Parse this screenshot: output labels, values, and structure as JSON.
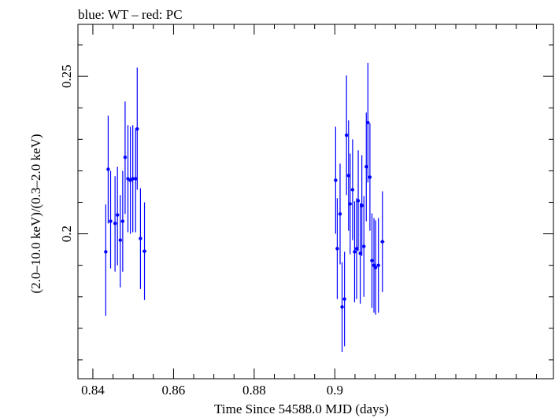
{
  "chart_data": {
    "type": "scatter",
    "title": "blue: WT – red: PC",
    "xlabel": "Time Since 54588.0 MJD (days)",
    "ylabel": "(2.0–10.0 keV)/(0.3–2.0 keV)",
    "xlim": [
      0.8363,
      0.9542
    ],
    "ylim": [
      0.154,
      0.2665
    ],
    "xticks": [
      0.84,
      0.86,
      0.88,
      0.9
    ],
    "xtick_labels": [
      "0.84",
      "0.86",
      "0.88",
      "0.9"
    ],
    "yticks": [
      0.2,
      0.25
    ],
    "ytick_labels": [
      "0.2",
      "0.25"
    ],
    "grid": false,
    "series": [
      {
        "color": "#0000ff",
        "points": [
          {
            "x": 0.8432,
            "y": 0.1943,
            "ylo": 0.174,
            "yhi": 0.2093
          },
          {
            "x": 0.8438,
            "y": 0.2205,
            "ylo": 0.2033,
            "yhi": 0.2375
          },
          {
            "x": 0.8444,
            "y": 0.204,
            "ylo": 0.189,
            "yhi": 0.22
          },
          {
            "x": 0.8455,
            "y": 0.2033,
            "ylo": 0.188,
            "yhi": 0.2183
          },
          {
            "x": 0.8461,
            "y": 0.206,
            "ylo": 0.19,
            "yhi": 0.2213
          },
          {
            "x": 0.8468,
            "y": 0.198,
            "ylo": 0.183,
            "yhi": 0.2123
          },
          {
            "x": 0.8474,
            "y": 0.204,
            "ylo": 0.188,
            "yhi": 0.22
          },
          {
            "x": 0.848,
            "y": 0.2243,
            "ylo": 0.2063,
            "yhi": 0.242
          },
          {
            "x": 0.8487,
            "y": 0.2175,
            "ylo": 0.2005,
            "yhi": 0.2345
          },
          {
            "x": 0.8493,
            "y": 0.217,
            "ylo": 0.2,
            "yhi": 0.234
          },
          {
            "x": 0.8499,
            "y": 0.2175,
            "ylo": 0.2005,
            "yhi": 0.2345
          },
          {
            "x": 0.8506,
            "y": 0.2175,
            "ylo": 0.2005,
            "yhi": 0.2335
          },
          {
            "x": 0.851,
            "y": 0.2333,
            "ylo": 0.214,
            "yhi": 0.2528
          },
          {
            "x": 0.8518,
            "y": 0.1985,
            "ylo": 0.1825,
            "yhi": 0.2145
          },
          {
            "x": 0.8528,
            "y": 0.1945,
            "ylo": 0.179,
            "yhi": 0.21,
            "xerr": 0.0005
          },
          {
            "x": 0.9002,
            "y": 0.217,
            "ylo": 0.2,
            "yhi": 0.234
          },
          {
            "x": 0.9006,
            "y": 0.1953,
            "ylo": 0.1793,
            "yhi": 0.2113
          },
          {
            "x": 0.9013,
            "y": 0.2063,
            "ylo": 0.1903,
            "yhi": 0.2223
          },
          {
            "x": 0.9018,
            "y": 0.1768,
            "ylo": 0.1625,
            "yhi": 0.191
          },
          {
            "x": 0.9024,
            "y": 0.1793,
            "ylo": 0.1643,
            "yhi": 0.1943
          },
          {
            "x": 0.9029,
            "y": 0.2313,
            "ylo": 0.2123,
            "yhi": 0.2503
          },
          {
            "x": 0.9034,
            "y": 0.2185,
            "ylo": 0.201,
            "yhi": 0.236
          },
          {
            "x": 0.9038,
            "y": 0.2095,
            "ylo": 0.1935,
            "yhi": 0.2255
          },
          {
            "x": 0.9044,
            "y": 0.214,
            "ylo": 0.198,
            "yhi": 0.23
          },
          {
            "x": 0.9049,
            "y": 0.1943,
            "ylo": 0.1783,
            "yhi": 0.2103
          },
          {
            "x": 0.9054,
            "y": 0.1953,
            "ylo": 0.1793,
            "yhi": 0.2113
          },
          {
            "x": 0.9058,
            "y": 0.2105,
            "ylo": 0.1945,
            "yhi": 0.2265
          },
          {
            "x": 0.9063,
            "y": 0.1938,
            "ylo": 0.1778,
            "yhi": 0.2098
          },
          {
            "x": 0.9067,
            "y": 0.209,
            "ylo": 0.193,
            "yhi": 0.225
          },
          {
            "x": 0.9072,
            "y": 0.196,
            "ylo": 0.18,
            "yhi": 0.212
          },
          {
            "x": 0.9078,
            "y": 0.2213,
            "ylo": 0.204,
            "yhi": 0.2385
          },
          {
            "x": 0.9082,
            "y": 0.2353,
            "ylo": 0.2163,
            "yhi": 0.2543
          },
          {
            "x": 0.9087,
            "y": 0.218,
            "ylo": 0.201,
            "yhi": 0.235
          },
          {
            "x": 0.9092,
            "y": 0.1915,
            "ylo": 0.1765,
            "yhi": 0.2065
          },
          {
            "x": 0.9097,
            "y": 0.19,
            "ylo": 0.175,
            "yhi": 0.205
          },
          {
            "x": 0.9101,
            "y": 0.1893,
            "ylo": 0.1743,
            "yhi": 0.2043
          },
          {
            "x": 0.9108,
            "y": 0.19,
            "ylo": 0.175,
            "yhi": 0.205
          },
          {
            "x": 0.9118,
            "y": 0.1975,
            "ylo": 0.1815,
            "yhi": 0.2135,
            "xerr": 0.0005
          }
        ]
      }
    ]
  }
}
